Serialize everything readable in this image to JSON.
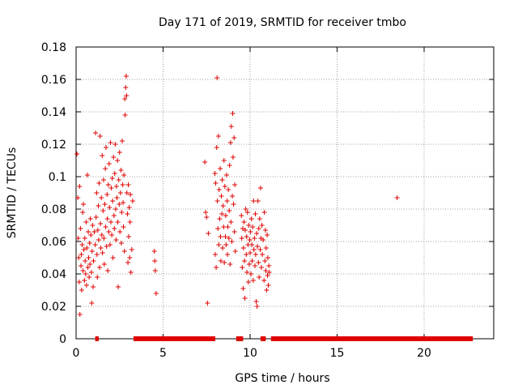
{
  "chart_data": {
    "type": "scatter",
    "title": "Day 171 of 2019, SRMTID for receiver tmbo",
    "xlabel": "GPS time / hours",
    "ylabel": "SRMTID / TECUs",
    "xlim": [
      0,
      24
    ],
    "ylim": [
      0,
      0.18
    ],
    "xticks": [
      0,
      5,
      10,
      15,
      20
    ],
    "xtick_labels": [
      "0",
      "5",
      "10",
      "15",
      "20"
    ],
    "yticks": [
      0,
      0.02,
      0.04,
      0.06,
      0.08,
      0.1,
      0.12,
      0.14,
      0.16,
      0.18
    ],
    "ytick_labels": [
      "0",
      "0.02",
      "0.04",
      "0.06",
      "0.08",
      "0.1",
      "0.12",
      "0.14",
      "0.16",
      "0.18"
    ],
    "grid": true,
    "marker": "+",
    "series": [
      {
        "name": "SRMTID",
        "color": "#e00000",
        "points": [
          [
            0.05,
            0.114
          ],
          [
            0.1,
            0.087
          ],
          [
            0.12,
            0.062
          ],
          [
            0.15,
            0.05
          ],
          [
            0.18,
            0.035
          ],
          [
            0.2,
            0.094
          ],
          [
            0.22,
            0.015
          ],
          [
            0.25,
            0.068
          ],
          [
            0.28,
            0.045
          ],
          [
            0.3,
            0.052
          ],
          [
            0.32,
            0.03
          ],
          [
            0.35,
            0.058
          ],
          [
            0.38,
            0.078
          ],
          [
            0.4,
            0.042
          ],
          [
            0.42,
            0.083
          ],
          [
            0.45,
            0.055
          ],
          [
            0.48,
            0.036
          ],
          [
            0.5,
            0.062
          ],
          [
            0.52,
            0.048
          ],
          [
            0.55,
            0.04
          ],
          [
            0.58,
            0.072
          ],
          [
            0.6,
            0.033
          ],
          [
            0.62,
            0.056
          ],
          [
            0.65,
            0.101
          ],
          [
            0.68,
            0.044
          ],
          [
            0.7,
            0.066
          ],
          [
            0.72,
            0.05
          ],
          [
            0.75,
            0.038
          ],
          [
            0.78,
            0.059
          ],
          [
            0.8,
            0.046
          ],
          [
            0.82,
            0.074
          ],
          [
            0.85,
            0.064
          ],
          [
            0.88,
            0.041
          ],
          [
            0.9,
            0.022
          ],
          [
            0.92,
            0.054
          ],
          [
            0.95,
            0.07
          ],
          [
            0.98,
            0.032
          ],
          [
            1.0,
            0.048
          ],
          [
            1.05,
            0.066
          ],
          [
            1.1,
            0.058
          ],
          [
            1.12,
            0.127
          ],
          [
            1.15,
            0.075
          ],
          [
            1.18,
            0.09
          ],
          [
            1.2,
            0.052
          ],
          [
            1.22,
            0.038
          ],
          [
            1.25,
            0.067
          ],
          [
            1.28,
            0.082
          ],
          [
            1.3,
            0.061
          ],
          [
            1.32,
            0.096
          ],
          [
            1.35,
            0.044
          ],
          [
            1.38,
            0.125
          ],
          [
            1.4,
            0.071
          ],
          [
            1.42,
            0.056
          ],
          [
            1.45,
            0.087
          ],
          [
            1.48,
            0.064
          ],
          [
            1.5,
            0.113
          ],
          [
            1.52,
            0.053
          ],
          [
            1.55,
            0.079
          ],
          [
            1.58,
            0.098
          ],
          [
            1.6,
            0.062
          ],
          [
            1.62,
            0.046
          ],
          [
            1.65,
            0.083
          ],
          [
            1.68,
            0.105
          ],
          [
            1.7,
            0.069
          ],
          [
            1.72,
            0.118
          ],
          [
            1.75,
            0.057
          ],
          [
            1.78,
            0.089
          ],
          [
            1.8,
            0.074
          ],
          [
            1.82,
            0.042
          ],
          [
            1.85,
            0.095
          ],
          [
            1.88,
            0.066
          ],
          [
            1.9,
            0.108
          ],
          [
            1.92,
            0.081
          ],
          [
            1.95,
            0.058
          ],
          [
            1.98,
            0.121
          ],
          [
            2.0,
            0.072
          ],
          [
            2.02,
            0.093
          ],
          [
            2.05,
            0.064
          ],
          [
            2.08,
            0.099
          ],
          [
            2.1,
            0.085
          ],
          [
            2.12,
            0.05
          ],
          [
            2.15,
            0.112
          ],
          [
            2.18,
            0.076
          ],
          [
            2.2,
            0.068
          ],
          [
            2.22,
            0.102
          ],
          [
            2.25,
            0.12
          ],
          [
            2.28,
            0.08
          ],
          [
            2.3,
            0.061
          ],
          [
            2.32,
            0.094
          ],
          [
            2.35,
            0.087
          ],
          [
            2.38,
            0.11
          ],
          [
            2.4,
            0.072
          ],
          [
            2.42,
            0.032
          ],
          [
            2.45,
            0.098
          ],
          [
            2.48,
            0.083
          ],
          [
            2.5,
            0.115
          ],
          [
            2.52,
            0.066
          ],
          [
            2.55,
            0.09
          ],
          [
            2.58,
            0.104
          ],
          [
            2.6,
            0.059
          ],
          [
            2.62,
            0.078
          ],
          [
            2.65,
            0.122
          ],
          [
            2.68,
            0.095
          ],
          [
            2.7,
            0.084
          ],
          [
            2.72,
            0.069
          ],
          [
            2.75,
            0.101
          ],
          [
            2.78,
            0.054
          ],
          [
            2.8,
            0.148
          ],
          [
            2.82,
            0.138
          ],
          [
            2.85,
            0.155
          ],
          [
            2.88,
            0.162
          ],
          [
            2.9,
            0.15
          ],
          [
            2.92,
            0.09
          ],
          [
            2.95,
            0.077
          ],
          [
            2.98,
            0.047
          ],
          [
            3.0,
            0.095
          ],
          [
            3.02,
            0.063
          ],
          [
            3.05,
            0.081
          ],
          [
            3.08,
            0.05
          ],
          [
            3.1,
            0.072
          ],
          [
            3.12,
            0.089
          ],
          [
            3.15,
            0.041
          ],
          [
            3.2,
            0.055
          ],
          [
            3.25,
            0.085
          ],
          [
            4.5,
            0.054
          ],
          [
            4.52,
            0.048
          ],
          [
            4.55,
            0.042
          ],
          [
            4.6,
            0.028
          ],
          [
            7.4,
            0.109
          ],
          [
            7.45,
            0.078
          ],
          [
            7.5,
            0.075
          ],
          [
            7.55,
            0.022
          ],
          [
            7.6,
            0.065
          ],
          [
            7.98,
            0.102
          ],
          [
            8.0,
            0.052
          ],
          [
            8.02,
            0.096
          ],
          [
            8.05,
            0.044
          ],
          [
            8.08,
            0.118
          ],
          [
            8.1,
            0.161
          ],
          [
            8.12,
            0.085
          ],
          [
            8.15,
            0.068
          ],
          [
            8.18,
            0.125
          ],
          [
            8.2,
            0.058
          ],
          [
            8.22,
            0.092
          ],
          [
            8.25,
            0.074
          ],
          [
            8.28,
            0.105
          ],
          [
            8.3,
            0.063
          ],
          [
            8.32,
            0.048
          ],
          [
            8.35,
            0.088
          ],
          [
            8.38,
            0.077
          ],
          [
            8.4,
            0.098
          ],
          [
            8.42,
            0.056
          ],
          [
            8.45,
            0.082
          ],
          [
            8.48,
            0.069
          ],
          [
            8.5,
            0.11
          ],
          [
            8.52,
            0.047
          ],
          [
            8.55,
            0.094
          ],
          [
            8.58,
            0.063
          ],
          [
            8.6,
            0.076
          ],
          [
            8.62,
            0.058
          ],
          [
            8.65,
            0.101
          ],
          [
            8.68,
            0.085
          ],
          [
            8.7,
            0.052
          ],
          [
            8.72,
            0.069
          ],
          [
            8.75,
            0.092
          ],
          [
            8.78,
            0.062
          ],
          [
            8.8,
            0.079
          ],
          [
            8.82,
            0.107
          ],
          [
            8.85,
            0.046
          ],
          [
            8.88,
            0.121
          ],
          [
            8.9,
            0.072
          ],
          [
            8.92,
            0.131
          ],
          [
            8.95,
            0.06
          ],
          [
            8.98,
            0.088
          ],
          [
            9.0,
            0.139
          ],
          [
            9.02,
            0.112
          ],
          [
            9.05,
            0.083
          ],
          [
            9.08,
            0.124
          ],
          [
            9.1,
            0.066
          ],
          [
            9.12,
            0.095
          ],
          [
            9.15,
            0.054
          ],
          [
            9.5,
            0.076
          ],
          [
            9.52,
            0.062
          ],
          [
            9.55,
            0.044
          ],
          [
            9.58,
            0.068
          ],
          [
            9.6,
            0.031
          ],
          [
            9.62,
            0.056
          ],
          [
            9.65,
            0.072
          ],
          [
            9.68,
            0.048
          ],
          [
            9.7,
            0.025
          ],
          [
            9.72,
            0.067
          ],
          [
            9.75,
            0.08
          ],
          [
            9.78,
            0.052
          ],
          [
            9.8,
            0.063
          ],
          [
            9.82,
            0.041
          ],
          [
            9.85,
            0.078
          ],
          [
            9.88,
            0.058
          ],
          [
            9.9,
            0.035
          ],
          [
            9.92,
            0.07
          ],
          [
            9.95,
            0.046
          ],
          [
            9.98,
            0.061
          ],
          [
            10.0,
            0.053
          ],
          [
            10.02,
            0.066
          ],
          [
            10.05,
            0.04
          ],
          [
            10.08,
            0.074
          ],
          [
            10.1,
            0.058
          ],
          [
            10.12,
            0.048
          ],
          [
            10.15,
            0.069
          ],
          [
            10.18,
            0.036
          ],
          [
            10.2,
            0.085
          ],
          [
            10.22,
            0.055
          ],
          [
            10.25,
            0.062
          ],
          [
            10.28,
            0.045
          ],
          [
            10.3,
            0.077
          ],
          [
            10.32,
            0.052
          ],
          [
            10.35,
            0.023
          ],
          [
            10.38,
            0.065
          ],
          [
            10.4,
            0.02
          ],
          [
            10.42,
            0.057
          ],
          [
            10.45,
            0.085
          ],
          [
            10.48,
            0.047
          ],
          [
            10.5,
            0.068
          ],
          [
            10.52,
            0.038
          ],
          [
            10.55,
            0.074
          ],
          [
            10.58,
            0.055
          ],
          [
            10.6,
            0.093
          ],
          [
            10.62,
            0.062
          ],
          [
            10.65,
            0.044
          ],
          [
            10.68,
            0.07
          ],
          [
            10.7,
            0.052
          ],
          [
            10.75,
            0.061
          ],
          [
            10.8,
            0.036
          ],
          [
            10.82,
            0.078
          ],
          [
            10.85,
            0.048
          ],
          [
            10.88,
            0.067
          ],
          [
            10.9,
            0.042
          ],
          [
            10.92,
            0.056
          ],
          [
            10.95,
            0.03
          ],
          [
            10.98,
            0.064
          ],
          [
            11.0,
            0.039
          ],
          [
            11.02,
            0.05
          ],
          [
            11.05,
            0.033
          ],
          [
            11.08,
            0.045
          ],
          [
            11.1,
            0.041
          ],
          [
            18.45,
            0.087
          ]
        ]
      }
    ],
    "zero_segments": [
      [
        1.1,
        1.3
      ],
      [
        3.3,
        8.0
      ],
      [
        9.2,
        9.6
      ],
      [
        10.6,
        10.9
      ],
      [
        11.2,
        22.8
      ]
    ]
  }
}
